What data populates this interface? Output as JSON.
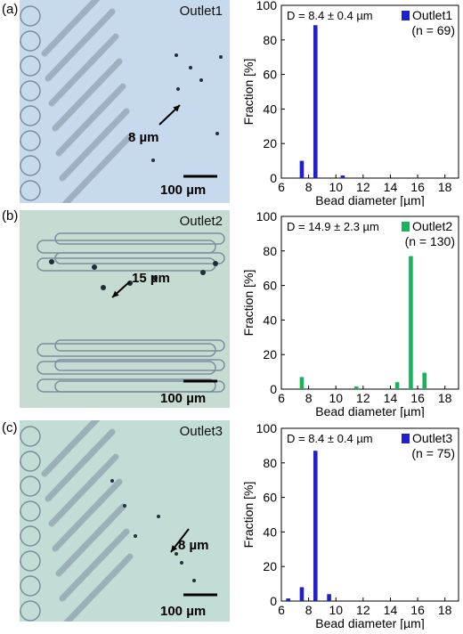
{
  "panels": [
    {
      "label": "(a)",
      "micrograph": {
        "title": "Outlet1",
        "annotation": "8 µm",
        "scale_bar": "100 µm",
        "layout": "diagonal",
        "bg": "#c7d9ec"
      },
      "chart_data": {
        "type": "bar",
        "stat_text": "D = 8.4 ± 0.4 µm",
        "legend": "Outlet1",
        "n_text": "(n = 69)",
        "color": "#1f1fd0",
        "xlabel": "Bead diameter [µm]",
        "ylabel": "Fraction [%]",
        "xlim": [
          6,
          19
        ],
        "ylim": [
          0,
          100
        ],
        "xticks": [
          6,
          8,
          10,
          12,
          14,
          16,
          18
        ],
        "yticks": [
          0,
          20,
          40,
          60,
          80,
          100
        ],
        "x": [
          7.5,
          8.5,
          10.5
        ],
        "values": [
          10,
          88.5,
          1.5
        ],
        "bar_width": 0.3,
        "grid": false,
        "legend_position": "top-right"
      }
    },
    {
      "label": "(b)",
      "micrograph": {
        "title": "Outlet2",
        "annotation": "15 µm",
        "scale_bar": "100 µm",
        "layout": "horizontal",
        "bg": "#c6dcd2"
      },
      "chart_data": {
        "type": "bar",
        "stat_text": "D = 14.9 ± 2.3 µm",
        "legend": "Outlet2",
        "n_text": "(n = 130)",
        "color": "#19b35a",
        "xlabel": "Bead diameter [µm]",
        "ylabel": "Fraction [%]",
        "xlim": [
          6,
          19
        ],
        "ylim": [
          0,
          100
        ],
        "xticks": [
          6,
          8,
          10,
          12,
          14,
          16,
          18
        ],
        "yticks": [
          0,
          20,
          40,
          60,
          80,
          100
        ],
        "x": [
          7.5,
          11.5,
          14.5,
          15.5,
          16.5
        ],
        "values": [
          7,
          1.5,
          4,
          77,
          9.5
        ],
        "bar_width": 0.3,
        "grid": false,
        "legend_position": "top-right"
      }
    },
    {
      "label": "(c)",
      "micrograph": {
        "title": "Outlet3",
        "annotation": "8 µm",
        "scale_bar": "100 µm",
        "layout": "diagonal",
        "bg": "#c2dcd6"
      },
      "chart_data": {
        "type": "bar",
        "stat_text": "D = 8.4 ± 0.4 µm",
        "legend": "Outlet3",
        "n_text": "(n = 75)",
        "color": "#1f1fd0",
        "xlabel": "Bead diameter [µm]",
        "ylabel": "Fraction [%]",
        "xlim": [
          6,
          19
        ],
        "ylim": [
          0,
          100
        ],
        "xticks": [
          6,
          8,
          10,
          12,
          14,
          16,
          18
        ],
        "yticks": [
          0,
          20,
          40,
          60,
          80,
          100
        ],
        "x": [
          6.5,
          7.5,
          8.5,
          9.5
        ],
        "values": [
          1.5,
          8,
          87,
          4
        ],
        "bar_width": 0.3,
        "grid": false,
        "legend_position": "top-right"
      }
    }
  ]
}
